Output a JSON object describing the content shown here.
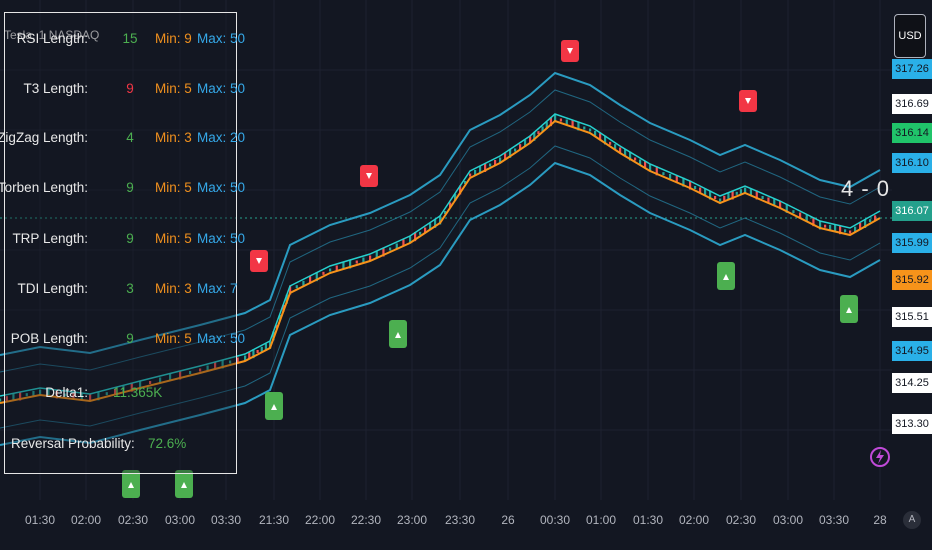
{
  "symbol": {
    "name": "Tesla, 1",
    "exchange": "NASDAQ"
  },
  "currency_button": "USD",
  "score_text": "4 - 0",
  "settings_panel": {
    "rows": [
      {
        "label": "RSI Length:",
        "value": "15",
        "min": "Min: 9",
        "max": "Max: 50",
        "value_color": "#4caf50"
      },
      {
        "label": "T3 Length:",
        "value": "9",
        "min": "Min: 5",
        "max": "Max: 50",
        "value_color": "#f23645"
      },
      {
        "label": "ZigZag Length:",
        "value": "4",
        "min": "Min: 3",
        "max": "Max: 20",
        "value_color": "#4caf50"
      },
      {
        "label": "Torben Length:",
        "value": "9",
        "min": "Min: 5",
        "max": "Max: 50",
        "value_color": "#4caf50"
      },
      {
        "label": "TRP Length:",
        "value": "9",
        "min": "Min: 5",
        "max": "Max: 50",
        "value_color": "#4caf50"
      },
      {
        "label": "TDI Length:",
        "value": "3",
        "min": "Min: 3",
        "max": "Max: 7",
        "value_color": "#4caf50"
      },
      {
        "label": "POB Length:",
        "value": "9",
        "min": "Min: 5",
        "max": "Max: 50",
        "value_color": "#4caf50"
      }
    ],
    "delta_label": "Delta1:",
    "delta_value": "11.365K",
    "reversal_label": "Reversal Probability:",
    "reversal_value": "72.6%"
  },
  "price_axis": [
    {
      "text": "317.26",
      "bg": "#2ab0e8",
      "fg": "#131722"
    },
    {
      "text": "316.69",
      "bg": "#ffffff",
      "fg": "#131722"
    },
    {
      "text": "316.14",
      "bg": "#20c46a",
      "fg": "#131722"
    },
    {
      "text": "316.10",
      "bg": "#2ab0e8",
      "fg": "#131722"
    },
    {
      "text": "316.07",
      "bg": "#24a08c",
      "fg": "#ffffff"
    },
    {
      "text": "315.99",
      "bg": "#2ab0e8",
      "fg": "#131722"
    },
    {
      "text": "315.92",
      "bg": "#f7931a",
      "fg": "#131722"
    },
    {
      "text": "315.51",
      "bg": "#ffffff",
      "fg": "#131722"
    },
    {
      "text": "314.95",
      "bg": "#2ab0e8",
      "fg": "#131722"
    },
    {
      "text": "314.25",
      "bg": "#ffffff",
      "fg": "#131722"
    },
    {
      "text": "313.30",
      "bg": "#ffffff",
      "fg": "#131722"
    }
  ],
  "time_axis": [
    "01:30",
    "02:00",
    "02:30",
    "03:00",
    "03:30",
    "21:30",
    "22:00",
    "22:30",
    "23:00",
    "23:30",
    "26",
    "00:30",
    "01:00",
    "01:30",
    "02:00",
    "02:30",
    "03:00",
    "03:30",
    "28"
  ],
  "colors": {
    "background": "#131722",
    "band": "#2a9bc0",
    "signal_sell": "#f23645",
    "signal_buy": "#4caf50",
    "t3_line": "#f7931a",
    "rsi_line": "#26d0ce"
  },
  "axis_toggle": "A"
}
